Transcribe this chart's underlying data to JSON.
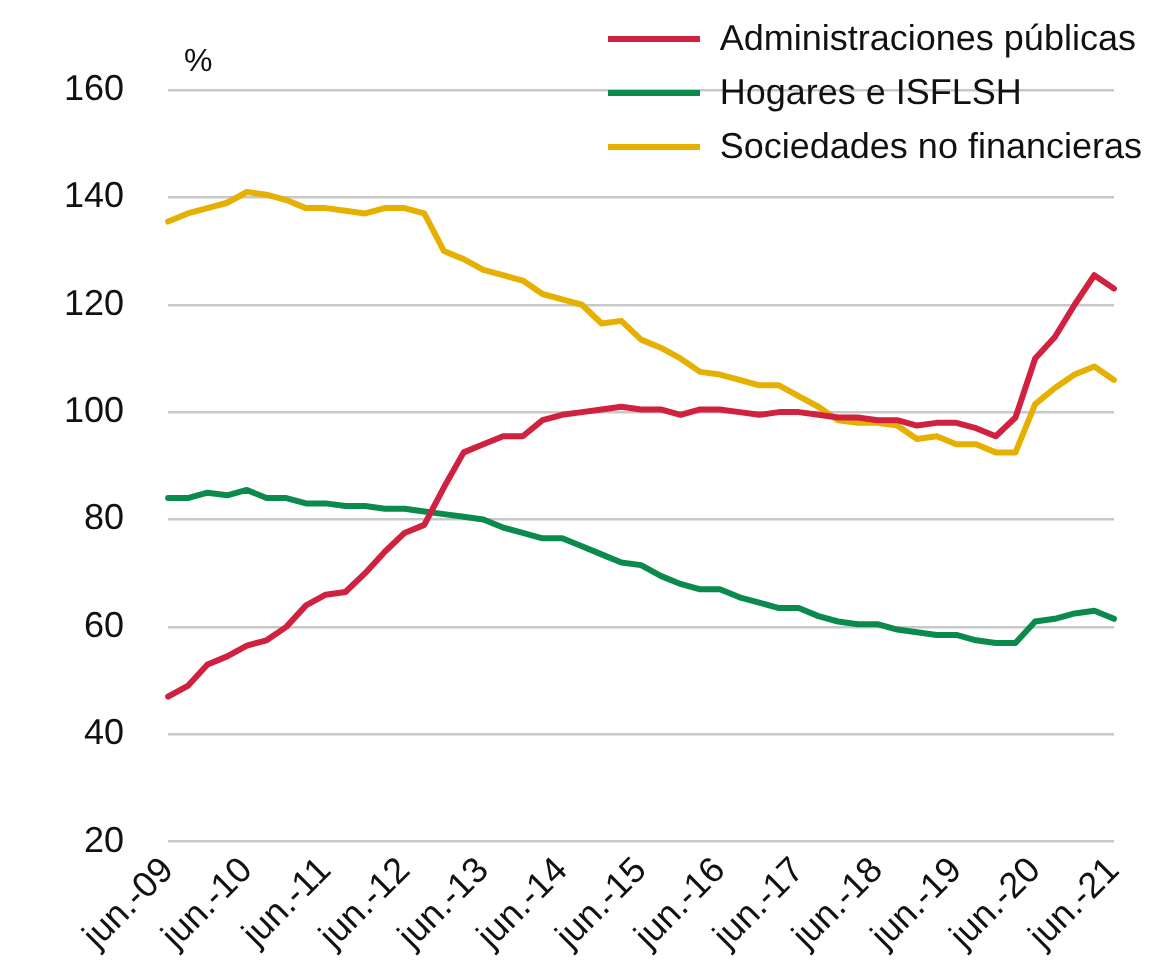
{
  "chart_data": {
    "type": "line",
    "ylabel": "%",
    "categories": [
      "jun.-09",
      null,
      null,
      null,
      "jun.-10",
      null,
      null,
      null,
      "jun.-11",
      null,
      null,
      null,
      "jun.-12",
      null,
      null,
      null,
      "jun.-13",
      null,
      null,
      null,
      "jun.-14",
      null,
      null,
      null,
      "jun.-15",
      null,
      null,
      null,
      "jun.-16",
      null,
      null,
      null,
      "jun.-17",
      null,
      null,
      null,
      "jun.-18",
      null,
      null,
      null,
      "jun.-19",
      null,
      null,
      null,
      "jun.-20",
      null,
      null,
      null,
      "jun.-21"
    ],
    "series": [
      {
        "name": "Administraciones públicas",
        "color": "#d0213f",
        "values": [
          47,
          49,
          53,
          54.5,
          56.5,
          57.5,
          60,
          64,
          66,
          66.5,
          70,
          74,
          77.5,
          79,
          86,
          92.5,
          94,
          95.5,
          95.5,
          98.5,
          99.5,
          100,
          100.5,
          101,
          100.5,
          100.5,
          99.5,
          100.5,
          100.5,
          100,
          99.5,
          100,
          100,
          99.5,
          99,
          99,
          98.5,
          98.5,
          97.5,
          98,
          98,
          97,
          95.5,
          99,
          110,
          114,
          120,
          125.5,
          123
        ]
      },
      {
        "name": "Hogares e ISFLSH",
        "color": "#0b8a4e",
        "values": [
          84,
          84,
          85,
          84.5,
          85.5,
          84,
          84,
          83,
          83,
          82.5,
          82.5,
          82,
          82,
          81.5,
          81,
          80.5,
          80,
          78.5,
          77.5,
          76.5,
          76.5,
          75,
          73.5,
          72,
          71.5,
          69.5,
          68,
          67,
          67,
          65.5,
          64.5,
          63.5,
          63.5,
          62,
          61,
          60.5,
          60.5,
          59.5,
          59,
          58.5,
          58.5,
          57.5,
          57,
          57,
          61,
          61.5,
          62.5,
          63,
          61.5
        ]
      },
      {
        "name": "Sociedades no financieras",
        "color": "#e6b000",
        "values": [
          135.5,
          137,
          138,
          139,
          141,
          140.5,
          139.5,
          138,
          138,
          137.5,
          137,
          138,
          138,
          137,
          130,
          128.5,
          126.5,
          125.5,
          124.5,
          122,
          121,
          120,
          116.5,
          117,
          113.5,
          112,
          110,
          107.5,
          107,
          106,
          105,
          105,
          103,
          101,
          98.5,
          98,
          98,
          97.5,
          95,
          95.5,
          94,
          94,
          92.5,
          92.5,
          101.5,
          104.5,
          107,
          108.5,
          106
        ]
      }
    ],
    "ylim": [
      20,
      160
    ],
    "yticks": [
      20,
      40,
      60,
      80,
      100,
      120,
      140,
      160
    ],
    "grid": "y",
    "legend": "top right",
    "marker": "none",
    "line_style": "solid"
  }
}
